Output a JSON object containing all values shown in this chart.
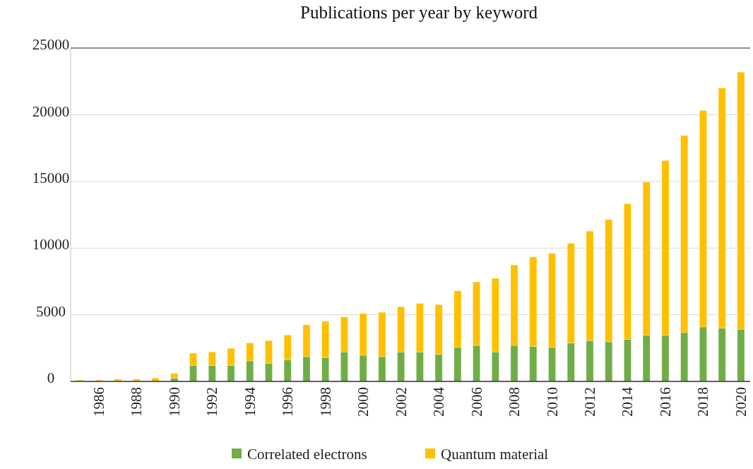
{
  "chart_data": {
    "type": "bar",
    "title": "Publications per year by keyword",
    "stacked": true,
    "categories": [
      null,
      "1986",
      null,
      "1988",
      null,
      "1990",
      null,
      "1992",
      null,
      "1994",
      null,
      "1996",
      null,
      "1998",
      null,
      "2000",
      null,
      "2002",
      null,
      "2004",
      null,
      "2006",
      null,
      "2008",
      null,
      "2010",
      null,
      "2012",
      null,
      "2014",
      null,
      "2016",
      null,
      "2018",
      null,
      "2020"
    ],
    "series": [
      {
        "name": "Correlated electrons",
        "color": "#70ad47",
        "values": [
          0,
          0,
          0,
          0,
          0,
          250,
          1200,
          1200,
          1200,
          1540,
          1360,
          1630,
          1860,
          1790,
          2210,
          1960,
          1860,
          2210,
          2210,
          2030,
          2550,
          2700,
          2210,
          2700,
          2630,
          2550,
          2880,
          3060,
          2970,
          3150,
          3480,
          3480,
          3660,
          4080,
          3990,
          3910
        ]
      },
      {
        "name": "Quantum material",
        "color": "#ffc000",
        "values": [
          100,
          100,
          160,
          160,
          250,
          350,
          920,
          1010,
          1280,
          1340,
          1700,
          1850,
          2380,
          2720,
          2620,
          3130,
          3320,
          3390,
          3640,
          3730,
          4240,
          4760,
          5520,
          6030,
          6700,
          7050,
          7480,
          8210,
          9170,
          10170,
          11470,
          13080,
          14780,
          16230,
          18010,
          19280
        ]
      }
    ],
    "ylim": [
      0,
      25000
    ],
    "yticks": [
      0,
      5000,
      10000,
      15000,
      20000,
      25000
    ],
    "grid": "y",
    "legend": "bottom"
  }
}
